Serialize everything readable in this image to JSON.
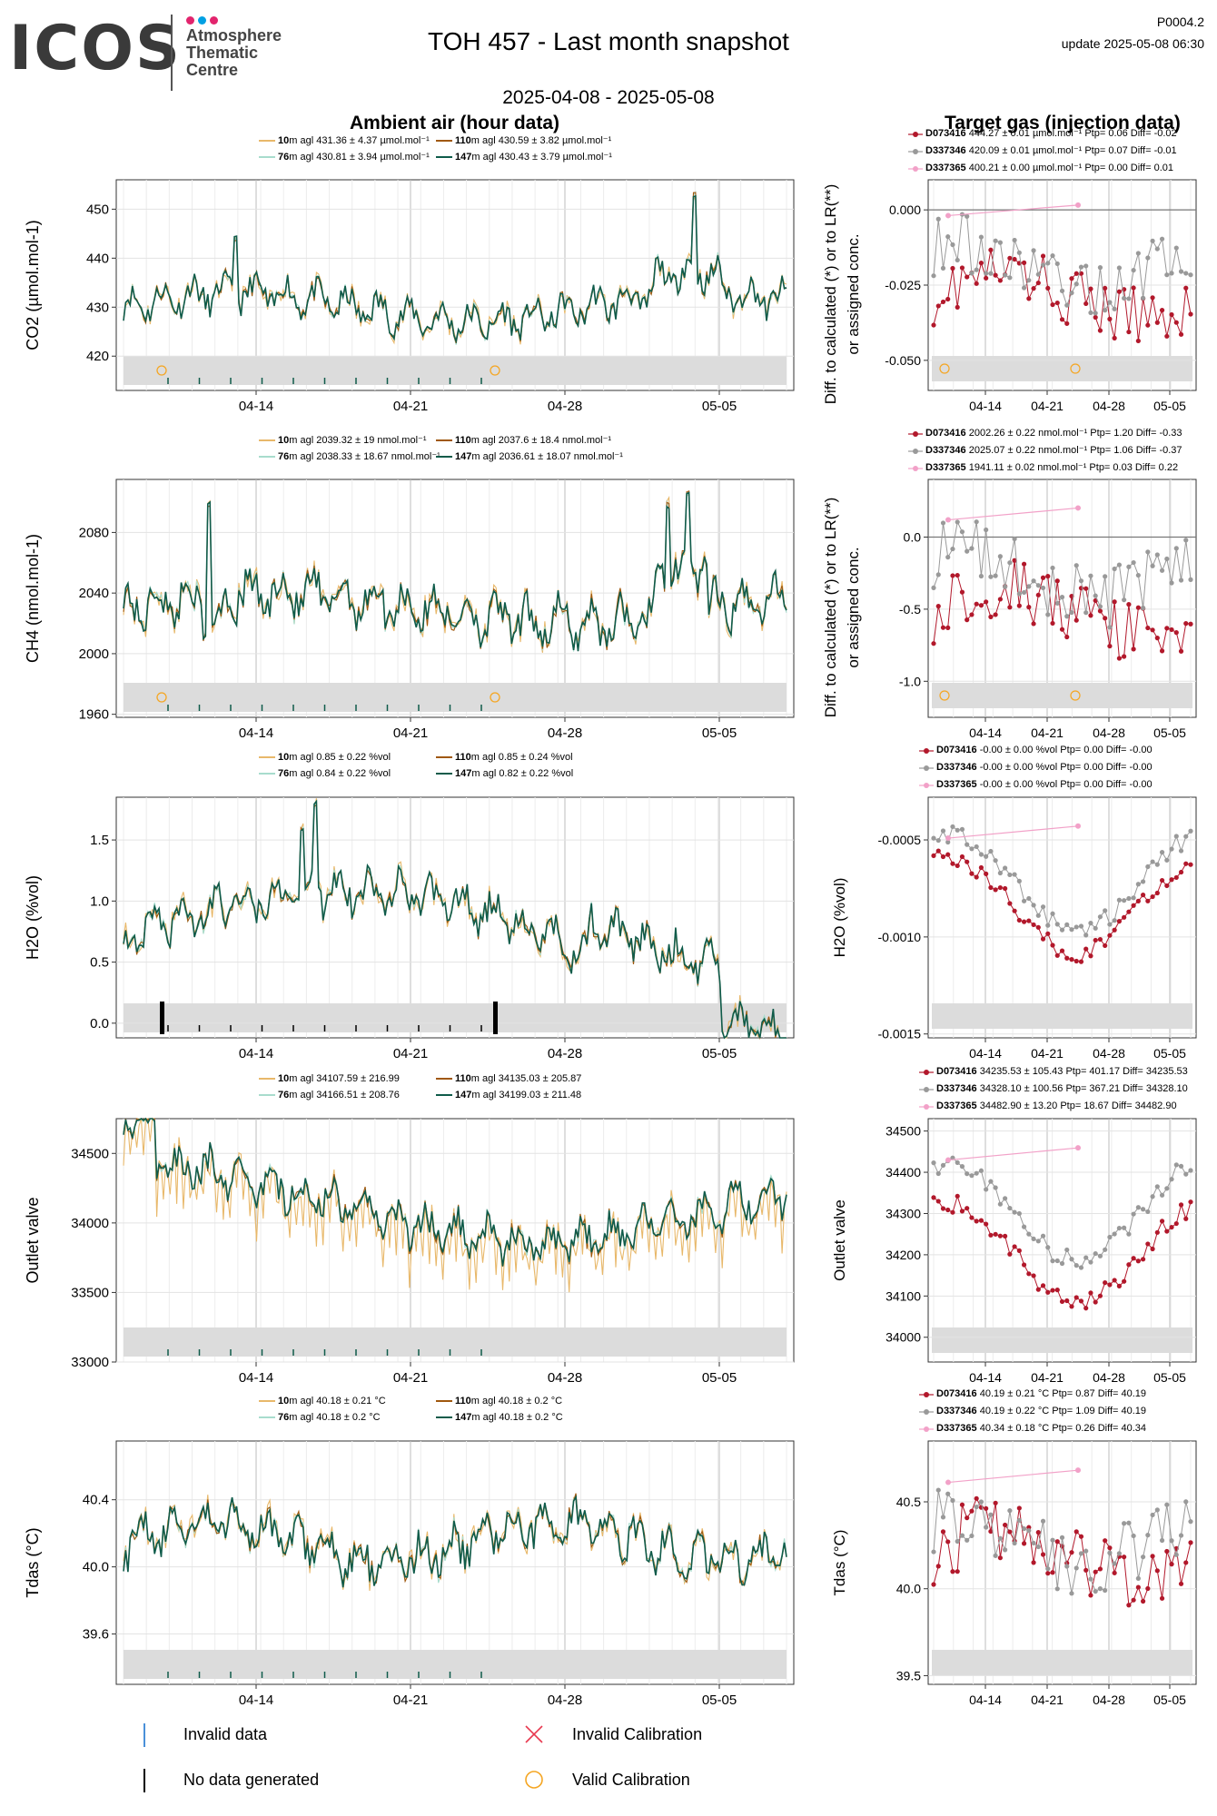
{
  "header": {
    "logo_text": "ICOS",
    "logo_sub": [
      "Atmosphere",
      "Thematic",
      "Centre"
    ],
    "logo_dot_colors": [
      "#e2246d",
      "#00a0e3",
      "#e2246d"
    ],
    "title": "TOH 457 - Last month snapshot",
    "date_range": "2025-04-08 - 2025-05-08",
    "code": "P0004.2",
    "update": "update  2025-05-08 06:30"
  },
  "sections": {
    "ambient": "Ambient air (hour data)",
    "target": "Target gas (injection data)"
  },
  "colors": {
    "h10": "#e8b86a",
    "h76": "#a8dccd",
    "h110": "#a0580e",
    "h147": "#0f5b4a",
    "D073416": "#b2182b",
    "D337346": "#999999",
    "D337365": "#f2a1c8",
    "grey_band": "#dcdcdc",
    "calib": "#f5a623",
    "invalid": "#4a90d9"
  },
  "x_ticks": [
    "04-14",
    "04-21",
    "04-28",
    "05-05"
  ],
  "panels": [
    {
      "key": "co2",
      "ylabel": "CO2 (µmol.mol-1)",
      "legend": [
        {
          "h": "10",
          "text": "m agl 431.36 ± 4.37 µmol.mol⁻¹"
        },
        {
          "h": "110",
          "text": "m agl 430.59 ± 3.82 µmol.mol⁻¹"
        },
        {
          "h": "76",
          "text": "m agl 430.81 ± 3.94 µmol.mol⁻¹"
        },
        {
          "h": "147",
          "text": "m agl 430.43 ± 3.79 µmol.mol⁻¹"
        }
      ],
      "yticks": [
        "450",
        "440",
        "430",
        "420"
      ],
      "target_ylabel": "Diff. to calculated (*) or to LR(**) or assigned conc.",
      "target_legend": [
        {
          "id": "D073416",
          "text": " 444.27 ± 0.01 µmol.mol⁻¹ Ptp= 0.06 Diff= -0.02"
        },
        {
          "id": "D337346",
          "text": " 420.09 ± 0.01 µmol.mol⁻¹ Ptp= 0.07 Diff= -0.01"
        },
        {
          "id": "D337365",
          "text": " 400.21 ± 0.00 µmol.mol⁻¹ Ptp= 0.00 Diff= 0.01"
        }
      ],
      "target_yticks": [
        "0.000",
        "-0.025",
        "-0.050"
      ]
    },
    {
      "key": "ch4",
      "ylabel": "CH4 (nmol.mol-1)",
      "legend": [
        {
          "h": "10",
          "text": "m agl 2039.32 ± 19 nmol.mol⁻¹"
        },
        {
          "h": "110",
          "text": "m agl 2037.6 ± 18.4 nmol.mol⁻¹"
        },
        {
          "h": "76",
          "text": "m agl 2038.33 ± 18.67 nmol.mol⁻¹"
        },
        {
          "h": "147",
          "text": "m agl 2036.61 ± 18.07 nmol.mol⁻¹"
        }
      ],
      "yticks": [
        "2080",
        "2040",
        "2000",
        "1960"
      ],
      "target_ylabel": "Diff. to calculated (*) or to LR(**) or assigned conc.",
      "target_legend": [
        {
          "id": "D073416",
          "text": " 2002.26 ± 0.22 nmol.mol⁻¹ Ptp= 1.20 Diff= -0.33"
        },
        {
          "id": "D337346",
          "text": " 2025.07 ± 0.22 nmol.mol⁻¹ Ptp= 1.06 Diff= -0.37"
        },
        {
          "id": "D337365",
          "text": " 1941.11 ± 0.02 nmol.mol⁻¹ Ptp= 0.03 Diff= 0.22"
        }
      ],
      "target_yticks": [
        "0.0",
        "-0.5",
        "-1.0"
      ]
    },
    {
      "key": "h2o",
      "ylabel": "H2O (%vol)",
      "legend": [
        {
          "h": "10",
          "text": "m agl 0.85 ± 0.22 %vol"
        },
        {
          "h": "110",
          "text": "m agl 0.85 ± 0.24 %vol"
        },
        {
          "h": "76",
          "text": "m agl 0.84 ± 0.22 %vol"
        },
        {
          "h": "147",
          "text": "m agl 0.82 ± 0.22 %vol"
        }
      ],
      "yticks": [
        "1.5",
        "1.0",
        "0.5",
        "0.0"
      ],
      "target_ylabel": "H2O (%vol)",
      "target_legend": [
        {
          "id": "D073416",
          "text": " -0.00 ± 0.00 %vol Ptp= 0.00 Diff= -0.00"
        },
        {
          "id": "D337346",
          "text": " -0.00 ± 0.00 %vol Ptp= 0.00 Diff= -0.00"
        },
        {
          "id": "D337365",
          "text": " -0.00 ± 0.00 %vol Ptp= 0.00 Diff= -0.00"
        }
      ],
      "target_yticks": [
        "-0.0005",
        "-0.0010",
        "-0.0015"
      ]
    },
    {
      "key": "outlet",
      "ylabel": "Outlet valve",
      "legend": [
        {
          "h": "10",
          "text": "m agl 34107.59 ± 216.99"
        },
        {
          "h": "110",
          "text": "m agl 34135.03 ± 205.87"
        },
        {
          "h": "76",
          "text": "m agl 34166.51 ± 208.76"
        },
        {
          "h": "147",
          "text": "m agl 34199.03 ± 211.48"
        }
      ],
      "yticks": [
        "34500",
        "34000",
        "33500",
        "33000"
      ],
      "target_ylabel": "Outlet valve",
      "target_legend": [
        {
          "id": "D073416",
          "text": " 34235.53 ± 105.43  Ptp= 401.17 Diff= 34235.53"
        },
        {
          "id": "D337346",
          "text": " 34328.10 ± 100.56  Ptp= 367.21 Diff= 34328.10"
        },
        {
          "id": "D337365",
          "text": " 34482.90 ± 13.20  Ptp= 18.67 Diff= 34482.90"
        }
      ],
      "target_yticks": [
        "34500",
        "34400",
        "34300",
        "34200",
        "34100",
        "34000"
      ]
    },
    {
      "key": "tdas",
      "ylabel": "Tdas (°C)",
      "legend": [
        {
          "h": "10",
          "text": "m agl 40.18 ± 0.21 °C"
        },
        {
          "h": "110",
          "text": "m agl 40.18 ± 0.2 °C"
        },
        {
          "h": "76",
          "text": "m agl 40.18 ± 0.2 °C"
        },
        {
          "h": "147",
          "text": "m agl 40.18 ± 0.2 °C"
        }
      ],
      "yticks": [
        "40.4",
        "40.0",
        "39.6"
      ],
      "target_ylabel": "Tdas (°C)",
      "target_legend": [
        {
          "id": "D073416",
          "text": " 40.19 ± 0.21 °C Ptp= 0.87 Diff= 40.19"
        },
        {
          "id": "D337346",
          "text": " 40.19 ± 0.22 °C Ptp= 1.09 Diff= 40.19"
        },
        {
          "id": "D337365",
          "text": " 40.34 ± 0.18 °C Ptp= 0.26 Diff= 40.34"
        }
      ],
      "target_yticks": [
        "40.5",
        "40.0",
        "39.5"
      ]
    }
  ],
  "bottom_legend": {
    "invalid_data": "Invalid data",
    "no_data": "No data generated",
    "invalid_calib": "Invalid Calibration",
    "valid_calib": "Valid Calibration"
  },
  "chart_data": [
    {
      "type": "line",
      "title": "Ambient air (hour data)",
      "ylabel": "CO2 (µmol.mol-1)",
      "ylim": [
        413,
        456
      ],
      "x_range": [
        "2025-04-08",
        "2025-05-08"
      ],
      "series": [
        {
          "name": "10m agl",
          "mean": 431.36,
          "sd": 4.37
        },
        {
          "name": "76m agl",
          "mean": 430.81,
          "sd": 3.94
        },
        {
          "name": "110m agl",
          "mean": 430.59,
          "sd": 3.82
        },
        {
          "name": "147m agl",
          "mean": 430.43,
          "sd": 3.79
        }
      ],
      "valid_calibration_dates": [
        "2025-04-10",
        "2025-04-24"
      ]
    },
    {
      "type": "line",
      "ylabel": "CH4 (nmol.mol-1)",
      "ylim": [
        1958,
        2115
      ],
      "series": [
        {
          "name": "10m agl",
          "mean": 2039.32,
          "sd": 19
        },
        {
          "name": "76m agl",
          "mean": 2038.33,
          "sd": 18.67
        },
        {
          "name": "110m agl",
          "mean": 2037.6,
          "sd": 18.4
        },
        {
          "name": "147m agl",
          "mean": 2036.61,
          "sd": 18.07
        }
      ]
    },
    {
      "type": "line",
      "ylabel": "H2O (%vol)",
      "ylim": [
        -0.12,
        1.85
      ],
      "series": [
        {
          "name": "10m agl",
          "mean": 0.85,
          "sd": 0.22
        },
        {
          "name": "76m agl",
          "mean": 0.84,
          "sd": 0.22
        },
        {
          "name": "110m agl",
          "mean": 0.85,
          "sd": 0.24
        },
        {
          "name": "147m agl",
          "mean": 0.82,
          "sd": 0.22
        }
      ]
    },
    {
      "type": "line",
      "ylabel": "Outlet valve",
      "ylim": [
        33000,
        34750
      ],
      "series": [
        {
          "name": "10m agl",
          "mean": 34107.59,
          "sd": 216.99
        },
        {
          "name": "76m agl",
          "mean": 34166.51,
          "sd": 208.76
        },
        {
          "name": "110m agl",
          "mean": 34135.03,
          "sd": 205.87
        },
        {
          "name": "147m agl",
          "mean": 34199.03,
          "sd": 211.48
        }
      ]
    },
    {
      "type": "line",
      "ylabel": "Tdas (°C)",
      "ylim": [
        39.3,
        40.75
      ],
      "series": [
        {
          "name": "10m agl",
          "mean": 40.18,
          "sd": 0.21
        },
        {
          "name": "76m agl",
          "mean": 40.18,
          "sd": 0.2
        },
        {
          "name": "110m agl",
          "mean": 40.18,
          "sd": 0.2
        },
        {
          "name": "147m agl",
          "mean": 40.18,
          "sd": 0.2
        }
      ]
    },
    {
      "type": "scatter",
      "title": "Target gas (injection data)",
      "ylabel": "Diff. to calculated (*) or to LR(**) or assigned conc.",
      "panel": "CO2",
      "ylim": [
        -0.06,
        0.01
      ],
      "series": [
        {
          "name": "D073416",
          "mean": 444.27,
          "sd": 0.01,
          "ptp": 0.06,
          "diff": -0.02
        },
        {
          "name": "D337346",
          "mean": 420.09,
          "sd": 0.01,
          "ptp": 0.07,
          "diff": -0.01
        },
        {
          "name": "D337365",
          "mean": 400.21,
          "sd": 0.0,
          "ptp": 0.0,
          "diff": 0.01
        }
      ]
    },
    {
      "type": "scatter",
      "panel": "CH4",
      "ylim": [
        -1.25,
        0.4
      ],
      "series": [
        {
          "name": "D073416",
          "mean": 2002.26,
          "sd": 0.22,
          "ptp": 1.2,
          "diff": -0.33
        },
        {
          "name": "D337346",
          "mean": 2025.07,
          "sd": 0.22,
          "ptp": 1.06,
          "diff": -0.37
        },
        {
          "name": "D337365",
          "mean": 1941.11,
          "sd": 0.02,
          "ptp": 0.03,
          "diff": 0.22
        }
      ]
    },
    {
      "type": "scatter",
      "panel": "H2O",
      "ylim": [
        -0.00152,
        -0.00028
      ],
      "series": [
        {
          "name": "D073416",
          "mean": -0.0,
          "sd": 0.0,
          "ptp": 0.0,
          "diff": -0.0
        },
        {
          "name": "D337346",
          "mean": -0.0,
          "sd": 0.0,
          "ptp": 0.0,
          "diff": -0.0
        },
        {
          "name": "D337365",
          "mean": -0.0,
          "sd": 0.0,
          "ptp": 0.0,
          "diff": -0.0
        }
      ]
    },
    {
      "type": "scatter",
      "panel": "Outlet valve",
      "ylim": [
        33940,
        34530
      ],
      "series": [
        {
          "name": "D073416",
          "mean": 34235.53,
          "sd": 105.43,
          "ptp": 401.17,
          "diff": 34235.53
        },
        {
          "name": "D337346",
          "mean": 34328.1,
          "sd": 100.56,
          "ptp": 367.21,
          "diff": 34328.1
        },
        {
          "name": "D337365",
          "mean": 34482.9,
          "sd": 13.2,
          "ptp": 18.67,
          "diff": 34482.9
        }
      ]
    },
    {
      "type": "scatter",
      "panel": "Tdas",
      "ylim": [
        39.45,
        40.85
      ],
      "series": [
        {
          "name": "D073416",
          "mean": 40.19,
          "sd": 0.21,
          "ptp": 0.87,
          "diff": 40.19
        },
        {
          "name": "D337346",
          "mean": 40.19,
          "sd": 0.22,
          "ptp": 1.09,
          "diff": 40.19
        },
        {
          "name": "D337365",
          "mean": 40.34,
          "sd": 0.18,
          "ptp": 0.26,
          "diff": 40.34
        }
      ]
    }
  ]
}
